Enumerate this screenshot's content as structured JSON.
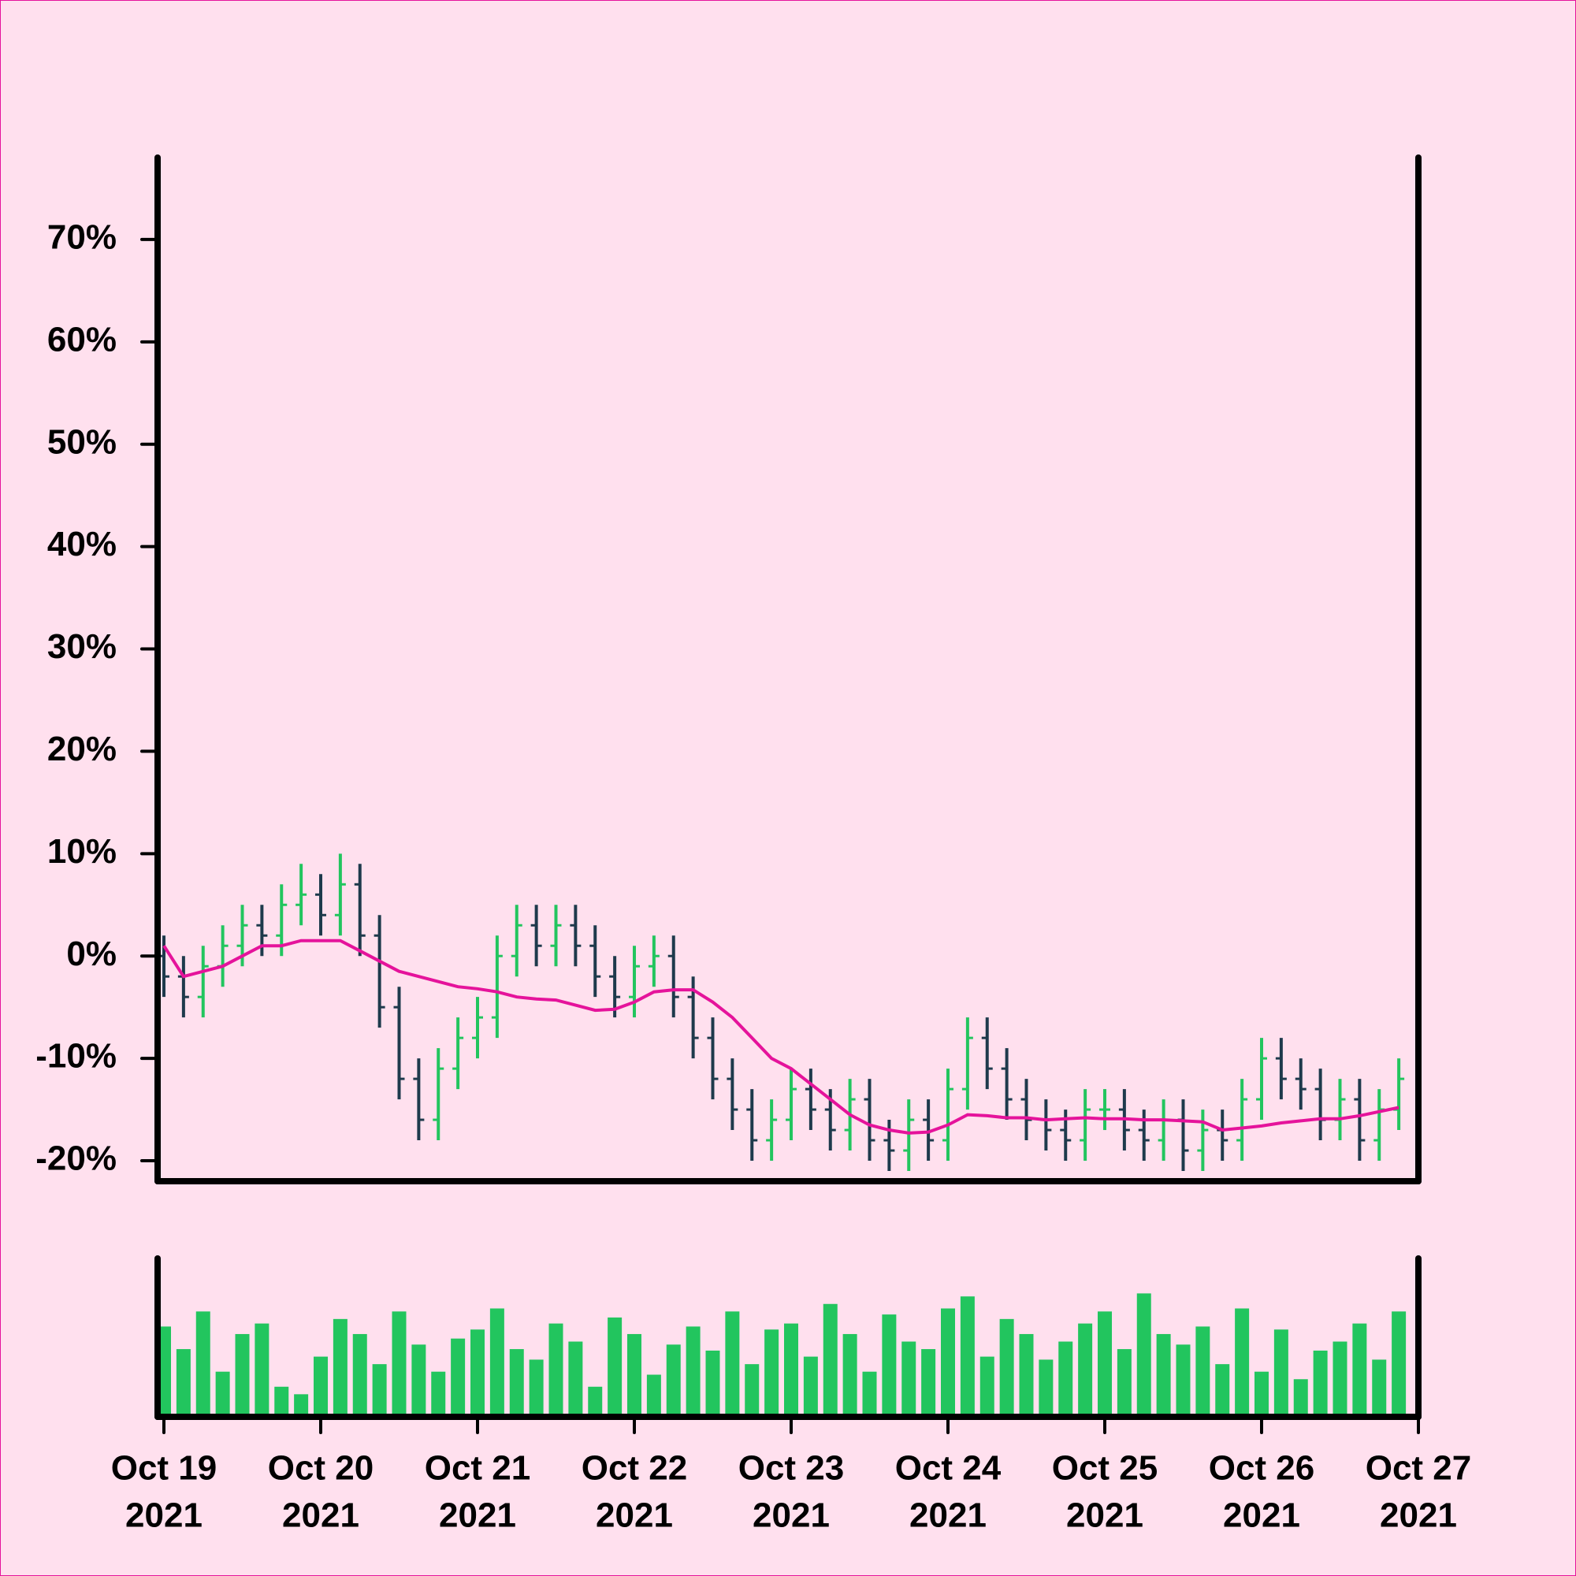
{
  "chart_data": {
    "type": "ohlc",
    "background": "#ffe0ee",
    "up_color": "#22c55e",
    "down_color": "#1e3a4c",
    "volume_color": "#22c55e",
    "ma_color": "#e5139b",
    "xlim": [
      "2021-10-19T00:00",
      "2021-10-27T00:00"
    ],
    "xticks": [
      {
        "value": "2021-10-19T00:00",
        "label": [
          "Oct 19",
          "2021"
        ]
      },
      {
        "value": "2021-10-20T00:00",
        "label": [
          "Oct 20",
          "2021"
        ]
      },
      {
        "value": "2021-10-21T00:00",
        "label": [
          "Oct 21",
          "2021"
        ]
      },
      {
        "value": "2021-10-22T00:00",
        "label": [
          "Oct 22",
          "2021"
        ]
      },
      {
        "value": "2021-10-23T00:00",
        "label": [
          "Oct 23",
          "2021"
        ]
      },
      {
        "value": "2021-10-24T00:00",
        "label": [
          "Oct 24",
          "2021"
        ]
      },
      {
        "value": "2021-10-25T00:00",
        "label": [
          "Oct 25",
          "2021"
        ]
      },
      {
        "value": "2021-10-26T00:00",
        "label": [
          "Oct 26",
          "2021"
        ]
      },
      {
        "value": "2021-10-27T00:00",
        "label": [
          "Oct 27",
          "2021"
        ]
      }
    ],
    "ylim": [
      -22,
      78
    ],
    "yticks": [
      {
        "value": -20,
        "label": "-20%"
      },
      {
        "value": -10,
        "label": "-10%"
      },
      {
        "value": 0,
        "label": "0%"
      },
      {
        "value": 10,
        "label": "10%"
      },
      {
        "value": 20,
        "label": "20%"
      },
      {
        "value": 30,
        "label": "30%"
      },
      {
        "value": 40,
        "label": "40%"
      },
      {
        "value": 50,
        "label": "50%"
      },
      {
        "value": 60,
        "label": "60%"
      },
      {
        "value": 70,
        "label": "70%"
      }
    ],
    "volume_ylim": [
      0,
      100
    ],
    "x": [
      "2021-10-19T00:00",
      "2021-10-19T03:00",
      "2021-10-19T06:00",
      "2021-10-19T09:00",
      "2021-10-19T12:00",
      "2021-10-19T15:00",
      "2021-10-19T18:00",
      "2021-10-19T21:00",
      "2021-10-20T00:00",
      "2021-10-20T03:00",
      "2021-10-20T06:00",
      "2021-10-20T09:00",
      "2021-10-20T12:00",
      "2021-10-20T15:00",
      "2021-10-20T18:00",
      "2021-10-20T21:00",
      "2021-10-21T00:00",
      "2021-10-21T03:00",
      "2021-10-21T06:00",
      "2021-10-21T09:00",
      "2021-10-21T12:00",
      "2021-10-21T15:00",
      "2021-10-21T18:00",
      "2021-10-21T21:00",
      "2021-10-22T00:00",
      "2021-10-22T03:00",
      "2021-10-22T06:00",
      "2021-10-22T09:00",
      "2021-10-22T12:00",
      "2021-10-22T15:00",
      "2021-10-22T18:00",
      "2021-10-22T21:00",
      "2021-10-23T00:00",
      "2021-10-23T03:00",
      "2021-10-23T06:00",
      "2021-10-23T09:00",
      "2021-10-23T12:00",
      "2021-10-23T15:00",
      "2021-10-23T18:00",
      "2021-10-23T21:00",
      "2021-10-24T00:00",
      "2021-10-24T03:00",
      "2021-10-24T06:00",
      "2021-10-24T09:00",
      "2021-10-24T12:00",
      "2021-10-24T15:00",
      "2021-10-24T18:00",
      "2021-10-24T21:00",
      "2021-10-25T00:00",
      "2021-10-25T03:00",
      "2021-10-25T06:00",
      "2021-10-25T09:00",
      "2021-10-25T12:00",
      "2021-10-25T15:00",
      "2021-10-25T18:00",
      "2021-10-25T21:00",
      "2021-10-26T00:00",
      "2021-10-26T03:00",
      "2021-10-26T06:00",
      "2021-10-26T09:00",
      "2021-10-26T12:00",
      "2021-10-26T15:00",
      "2021-10-26T18:00",
      "2021-10-26T21:00"
    ],
    "open": [
      0,
      -2,
      -4,
      -1,
      1,
      3,
      2,
      5,
      6,
      4,
      7,
      2,
      -5,
      -12,
      -16,
      -11,
      -8,
      -6,
      0,
      3,
      1,
      3,
      1,
      -2,
      -4,
      -1,
      0,
      -4,
      -8,
      -12,
      -15,
      -18,
      -16,
      -13,
      -15,
      -17,
      -14,
      -18,
      -19,
      -16,
      -18,
      -13,
      -8,
      -11,
      -14,
      -16,
      -17,
      -18,
      -15,
      -15,
      -17,
      -18,
      -16,
      -19,
      -17,
      -18,
      -14,
      -10,
      -12,
      -13,
      -16,
      -14,
      -18,
      -15
    ],
    "high": [
      2,
      0,
      1,
      3,
      5,
      5,
      7,
      9,
      8,
      10,
      9,
      4,
      -3,
      -10,
      -9,
      -6,
      -4,
      2,
      5,
      5,
      5,
      5,
      3,
      0,
      1,
      2,
      2,
      -2,
      -6,
      -10,
      -13,
      -14,
      -11,
      -11,
      -13,
      -12,
      -12,
      -16,
      -14,
      -14,
      -11,
      -6,
      -6,
      -9,
      -12,
      -14,
      -15,
      -13,
      -13,
      -13,
      -15,
      -14,
      -14,
      -15,
      -15,
      -12,
      -8,
      -8,
      -10,
      -11,
      -12,
      -12,
      -13,
      -10
    ],
    "low": [
      -4,
      -6,
      -6,
      -3,
      -1,
      0,
      0,
      3,
      2,
      2,
      0,
      -7,
      -14,
      -18,
      -18,
      -13,
      -10,
      -8,
      -2,
      -1,
      -1,
      -1,
      -4,
      -6,
      -6,
      -3,
      -6,
      -10,
      -14,
      -17,
      -20,
      -20,
      -18,
      -17,
      -19,
      -19,
      -20,
      -21,
      -21,
      -20,
      -20,
      -15,
      -13,
      -16,
      -18,
      -19,
      -20,
      -20,
      -17,
      -19,
      -20,
      -20,
      -21,
      -21,
      -20,
      -20,
      -16,
      -14,
      -15,
      -18,
      -18,
      -20,
      -20,
      -17
    ],
    "close": [
      -2,
      -4,
      -1,
      1,
      3,
      2,
      5,
      6,
      4,
      7,
      2,
      -5,
      -12,
      -16,
      -11,
      -8,
      -6,
      0,
      3,
      1,
      3,
      1,
      -2,
      -4,
      -1,
      0,
      -4,
      -8,
      -12,
      -15,
      -18,
      -16,
      -13,
      -15,
      -17,
      -14,
      -18,
      -19,
      -16,
      -18,
      -13,
      -8,
      -11,
      -14,
      -16,
      -17,
      -18,
      -15,
      -15,
      -17,
      -18,
      -16,
      -19,
      -17,
      -18,
      -14,
      -10,
      -12,
      -13,
      -16,
      -14,
      -18,
      -15,
      -12
    ],
    "volume": [
      60,
      45,
      70,
      30,
      55,
      62,
      20,
      15,
      40,
      65,
      55,
      35,
      70,
      48,
      30,
      52,
      58,
      72,
      45,
      38,
      62,
      50,
      20,
      66,
      55,
      28,
      48,
      60,
      44,
      70,
      35,
      58,
      62,
      40,
      75,
      55,
      30,
      68,
      50,
      45,
      72,
      80,
      40,
      65,
      55,
      38,
      50,
      62,
      70,
      45,
      82,
      55,
      48,
      60,
      35,
      72,
      30,
      58,
      25,
      44,
      50,
      62,
      38,
      70
    ],
    "ma": [
      1,
      -2,
      -1.5,
      -1,
      0,
      1,
      1,
      1.5,
      1.5,
      1.5,
      0.5,
      -0.5,
      -1.5,
      -2,
      -2.5,
      -3,
      -3.2,
      -3.5,
      -4,
      -4.2,
      -4.3,
      -4.8,
      -5.3,
      -5.2,
      -4.5,
      -3.5,
      -3.3,
      -3.3,
      -4.5,
      -6,
      -8,
      -10,
      -11,
      -12.5,
      -14,
      -15.5,
      -16.5,
      -17,
      -17.3,
      -17.2,
      -16.5,
      -15.5,
      -15.6,
      -15.8,
      -15.8,
      -16,
      -15.9,
      -15.8,
      -15.9,
      -15.9,
      -16,
      -16,
      -16.1,
      -16.2,
      -17,
      -16.8,
      -16.6,
      -16.3,
      -16.1,
      -15.9,
      -15.9,
      -15.6,
      -15.2,
      -14.8
    ]
  }
}
